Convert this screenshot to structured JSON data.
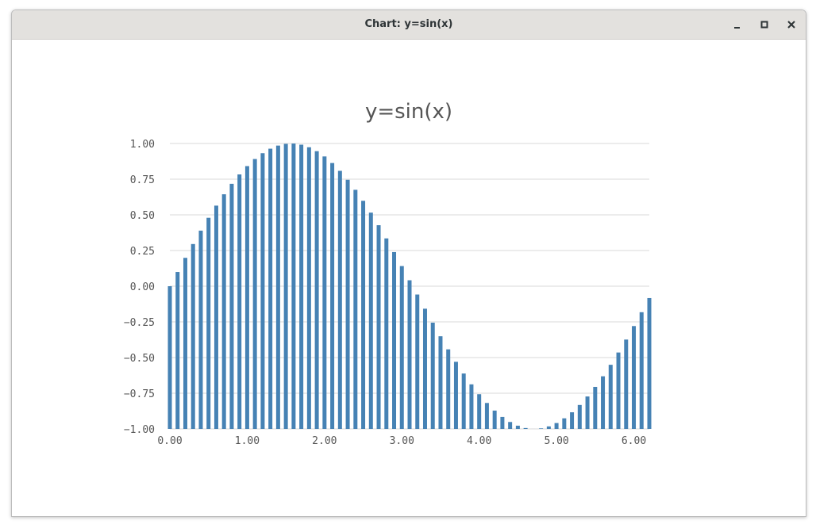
{
  "window": {
    "title": "Chart: y=sin(x)",
    "minimize_icon": "minimize-icon",
    "maximize_icon": "maximize-icon",
    "close_icon": "close-icon"
  },
  "colors": {
    "bar": "#4682b4",
    "grid": "#d9d9d9",
    "text": "#555555"
  },
  "chart_data": {
    "type": "bar",
    "title": "y=sin(x)",
    "xlabel": "",
    "ylabel": "",
    "xlim": [
      0.0,
      6.2
    ],
    "ylim": [
      -1.0,
      1.0
    ],
    "grid": "horizontal",
    "x_ticks": [
      "0.00",
      "1.00",
      "2.00",
      "3.00",
      "4.00",
      "5.00",
      "6.00"
    ],
    "y_ticks": [
      "1.00",
      "0.75",
      "0.50",
      "0.25",
      "0.00",
      "−0.25",
      "−0.50",
      "−0.75",
      "−1.00"
    ],
    "y_tick_values": [
      1.0,
      0.75,
      0.5,
      0.25,
      0.0,
      -0.25,
      -0.5,
      -0.75,
      -1.0
    ],
    "x_tick_values": [
      0,
      1,
      2,
      3,
      4,
      5,
      6
    ],
    "x": [
      0.0,
      0.1,
      0.2,
      0.3,
      0.4,
      0.5,
      0.6,
      0.7,
      0.8,
      0.9,
      1.0,
      1.1,
      1.2,
      1.3,
      1.4,
      1.5,
      1.6,
      1.7,
      1.8,
      1.9,
      2.0,
      2.1,
      2.2,
      2.3,
      2.4,
      2.5,
      2.6,
      2.7,
      2.8,
      2.9,
      3.0,
      3.1,
      3.2,
      3.3,
      3.4,
      3.5,
      3.6,
      3.7,
      3.8,
      3.9,
      4.0,
      4.1,
      4.2,
      4.3,
      4.4,
      4.5,
      4.6,
      4.7,
      4.8,
      4.9,
      5.0,
      5.1,
      5.2,
      5.3,
      5.4,
      5.5,
      5.6,
      5.7,
      5.8,
      5.9,
      6.0,
      6.1,
      6.2
    ],
    "values": [
      0.0,
      0.0998,
      0.1987,
      0.2955,
      0.3894,
      0.4794,
      0.5646,
      0.6442,
      0.7174,
      0.7833,
      0.8415,
      0.8912,
      0.932,
      0.9636,
      0.9854,
      0.9975,
      0.9996,
      0.9917,
      0.9738,
      0.9463,
      0.9093,
      0.8632,
      0.8085,
      0.7457,
      0.6755,
      0.5985,
      0.5155,
      0.4274,
      0.335,
      0.2392,
      0.1411,
      0.0416,
      -0.0584,
      -0.1577,
      -0.2555,
      -0.3508,
      -0.4425,
      -0.5298,
      -0.6119,
      -0.6878,
      -0.7568,
      -0.8183,
      -0.8716,
      -0.9162,
      -0.9516,
      -0.9775,
      -0.9937,
      -0.9999,
      -0.9962,
      -0.9825,
      -0.9589,
      -0.9258,
      -0.8835,
      -0.8323,
      -0.7728,
      -0.7055,
      -0.6313,
      -0.5507,
      -0.4646,
      -0.3739,
      -0.2794,
      -0.1822,
      -0.0831
    ]
  }
}
